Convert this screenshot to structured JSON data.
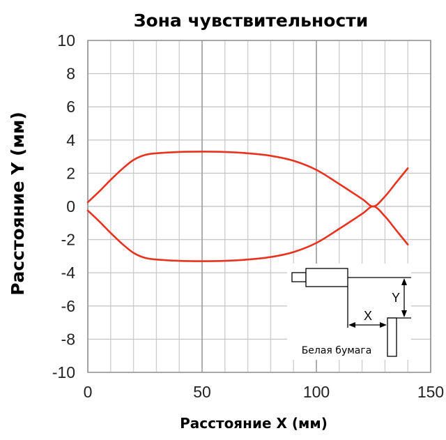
{
  "chart_data": {
    "type": "line",
    "title": "Зона чувствительности",
    "xlabel": "Расстояние X (мм)",
    "ylabel": "Расстояние Y (мм)",
    "xlim": [
      0,
      150
    ],
    "ylim": [
      -10,
      10
    ],
    "x_ticks": [
      "0",
      "50",
      "100",
      "150"
    ],
    "y_ticks": [
      "10",
      "8",
      "6",
      "4",
      "2",
      "0",
      "-2",
      "-4",
      "-6",
      "-8",
      "-10"
    ],
    "x_minor_step": 10,
    "y_minor_step": 2,
    "grid": true,
    "line_color": "#e8321e",
    "series": [
      {
        "x": [
          0,
          5,
          10,
          15,
          20,
          25,
          30,
          40,
          50,
          60,
          70,
          80,
          90,
          100,
          110,
          120,
          125,
          130,
          135,
          140
        ],
        "y": [
          0.25,
          0.9,
          1.6,
          2.25,
          2.8,
          3.1,
          3.2,
          3.28,
          3.3,
          3.28,
          3.2,
          3.05,
          2.75,
          2.2,
          1.35,
          0.45,
          0.0,
          0.6,
          1.45,
          2.3
        ]
      },
      {
        "x": [
          0,
          5,
          10,
          15,
          20,
          25,
          30,
          40,
          50,
          60,
          70,
          80,
          90,
          100,
          110,
          120,
          125,
          130,
          135,
          140
        ],
        "y": [
          -0.25,
          -0.9,
          -1.6,
          -2.25,
          -2.8,
          -3.1,
          -3.2,
          -3.28,
          -3.3,
          -3.28,
          -3.2,
          -3.05,
          -2.75,
          -2.2,
          -1.35,
          -0.45,
          0.0,
          -0.6,
          -1.45,
          -2.3
        ]
      }
    ]
  },
  "inset": {
    "label_x": "X",
    "label_y": "Y",
    "caption": "Белая бумага"
  }
}
